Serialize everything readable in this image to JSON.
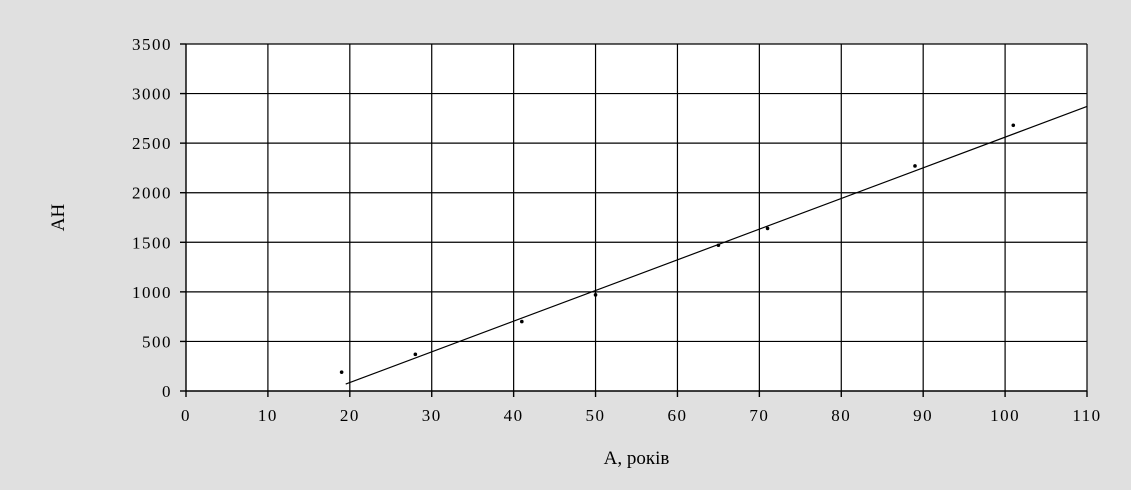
{
  "chart_data": {
    "type": "scatter",
    "title": "",
    "xlabel": "A, років",
    "ylabel": "AH",
    "xlim": [
      0,
      110
    ],
    "ylim": [
      0,
      3500
    ],
    "x_ticks": [
      0,
      10,
      20,
      30,
      40,
      50,
      60,
      70,
      80,
      90,
      100,
      110
    ],
    "y_ticks": [
      0,
      500,
      1000,
      1500,
      2000,
      2500,
      3000,
      3500
    ],
    "grid": true,
    "legend": "none",
    "background_color": "#e0e0e0",
    "plot_background_color": "#ffffff",
    "series": [
      {
        "type": "scatter",
        "x": [
          19,
          28,
          41,
          50,
          65,
          71,
          89,
          101
        ],
        "y": [
          190,
          370,
          700,
          970,
          1470,
          1640,
          2270,
          2680
        ]
      },
      {
        "type": "line",
        "x": [
          19.5,
          110
        ],
        "y": [
          70,
          2870
        ]
      }
    ]
  }
}
